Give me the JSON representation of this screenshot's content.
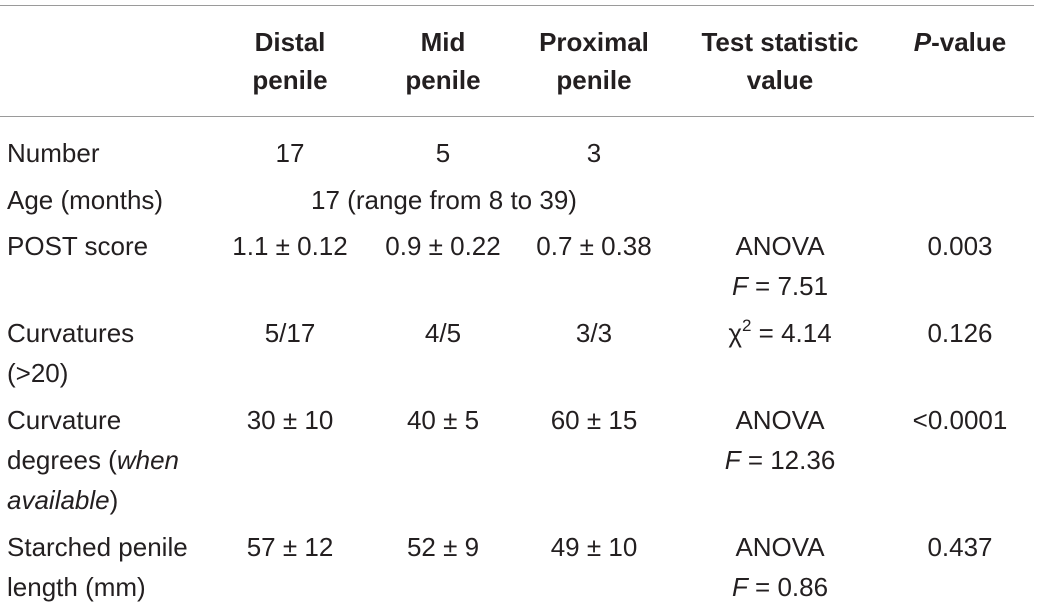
{
  "headers": {
    "distal_line1": "Distal",
    "distal_line2": "penile",
    "mid_line1": "Mid",
    "mid_line2": "penile",
    "proximal_line1": "Proximal",
    "proximal_line2": "penile",
    "test_line1": "Test statistic",
    "test_line2": "value",
    "pvalue_italic": "P",
    "pvalue_rest": "-value"
  },
  "rows": {
    "number": {
      "label": "Number",
      "distal": "17",
      "mid": "5",
      "proximal": "3"
    },
    "age": {
      "label": "Age (months)",
      "combined": "17 (range from 8 to 39)"
    },
    "post": {
      "label": "POST score",
      "distal": "1.1 ± 0.12",
      "mid": "0.9 ± 0.22",
      "proximal": "0.7 ± 0.38",
      "test_line1": "ANOVA",
      "test_f": "F",
      "test_line2": " = 7.51",
      "pvalue": "0.003"
    },
    "curvatures": {
      "label_line1": "Curvatures",
      "label_line2": "(>20)",
      "distal": "5/17",
      "mid": "4/5",
      "proximal": "3/3",
      "test_chi": "χ",
      "test_sup": "2",
      "test_rest": " = 4.14",
      "pvalue": "0.126"
    },
    "curvature_degrees": {
      "label_line1": "Curvature",
      "label_line2_plain": "degrees (",
      "label_line2_italic": "when",
      "label_line3_italic": "available",
      "label_line3_plain": ")",
      "distal": "30 ± 10",
      "mid": "40 ± 5",
      "proximal": "60 ± 15",
      "test_line1": "ANOVA",
      "test_f": "F",
      "test_line2": " = 12.36",
      "pvalue": "<0.0001"
    },
    "stretched": {
      "label_line1": "Starched penile",
      "label_line2": "length (mm)",
      "distal": "57 ± 12",
      "mid": "52 ± 9",
      "proximal": "49 ± 10",
      "test_line1": "ANOVA",
      "test_f": "F",
      "test_line2": " = 0.86",
      "pvalue": "0.437"
    }
  }
}
